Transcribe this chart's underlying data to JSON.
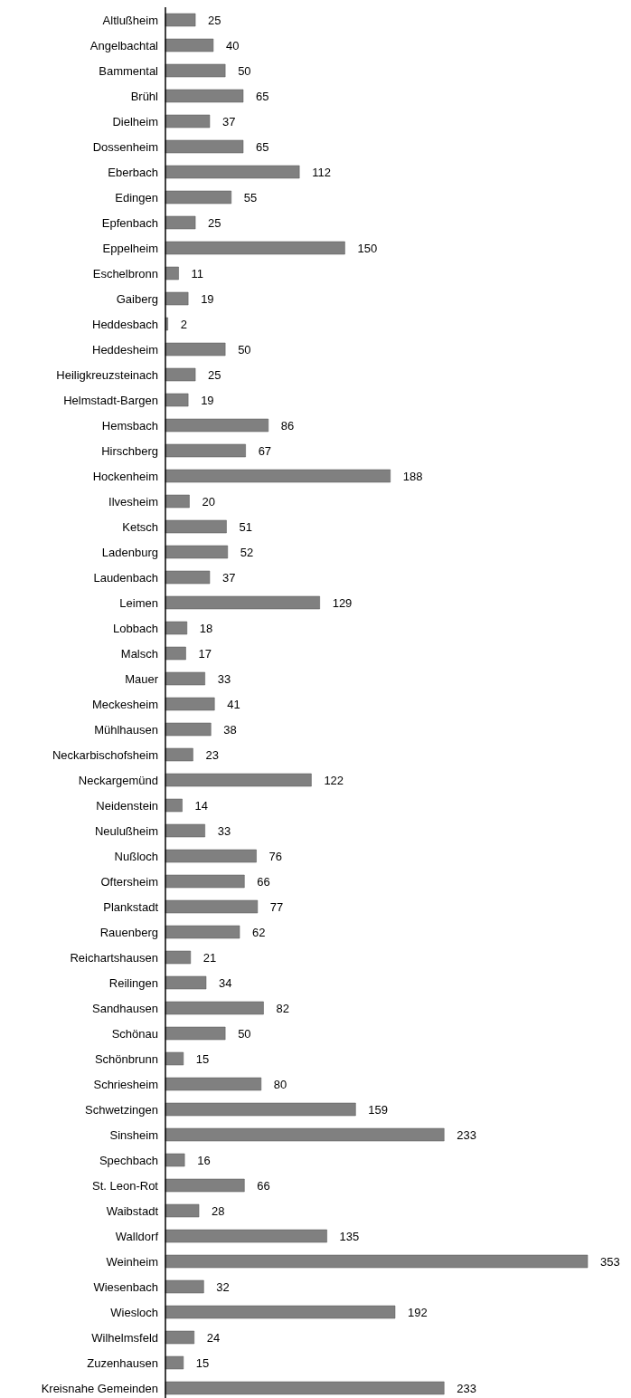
{
  "chart_data": {
    "type": "bar",
    "orientation": "horizontal",
    "data_labels": true,
    "color": "#808080",
    "categories": [
      "Altlußheim",
      "Angelbachtal",
      "Bammental",
      "Brühl",
      "Dielheim",
      "Dossenheim",
      "Eberbach",
      "Edingen",
      "Epfenbach",
      "Eppelheim",
      "Eschelbronn",
      "Gaiberg",
      "Heddesbach",
      "Heddesheim",
      "Heiligkreuzsteinach",
      "Helmstadt-Bargen",
      "Hemsbach",
      "Hirschberg",
      "Hockenheim",
      "Ilvesheim",
      "Ketsch",
      "Ladenburg",
      "Laudenbach",
      "Leimen",
      "Lobbach",
      "Malsch",
      "Mauer",
      "Meckesheim",
      "Mühlhausen",
      "Neckarbischofsheim",
      "Neckargemünd",
      "Neidenstein",
      "Neulußheim",
      "Nußloch",
      "Oftersheim",
      "Plankstadt",
      "Rauenberg",
      "Reichartshausen",
      "Reilingen",
      "Sandhausen",
      "Schönau",
      "Schönbrunn",
      "Schriesheim",
      "Schwetzingen",
      "Sinsheim",
      "Spechbach",
      "St. Leon-Rot",
      "Waibstadt",
      "Walldorf",
      "Weinheim",
      "Wiesenbach",
      "Wiesloch",
      "Wilhelmsfeld",
      "Zuzenhausen",
      "Kreisnahe Gemeinden"
    ],
    "values": [
      25,
      40,
      50,
      65,
      37,
      65,
      112,
      55,
      25,
      150,
      11,
      19,
      2,
      50,
      25,
      19,
      86,
      67,
      188,
      20,
      51,
      52,
      37,
      129,
      18,
      17,
      33,
      41,
      38,
      23,
      122,
      14,
      33,
      76,
      66,
      77,
      62,
      21,
      34,
      82,
      50,
      15,
      80,
      159,
      233,
      16,
      66,
      28,
      135,
      353,
      32,
      192,
      24,
      15,
      233
    ]
  }
}
